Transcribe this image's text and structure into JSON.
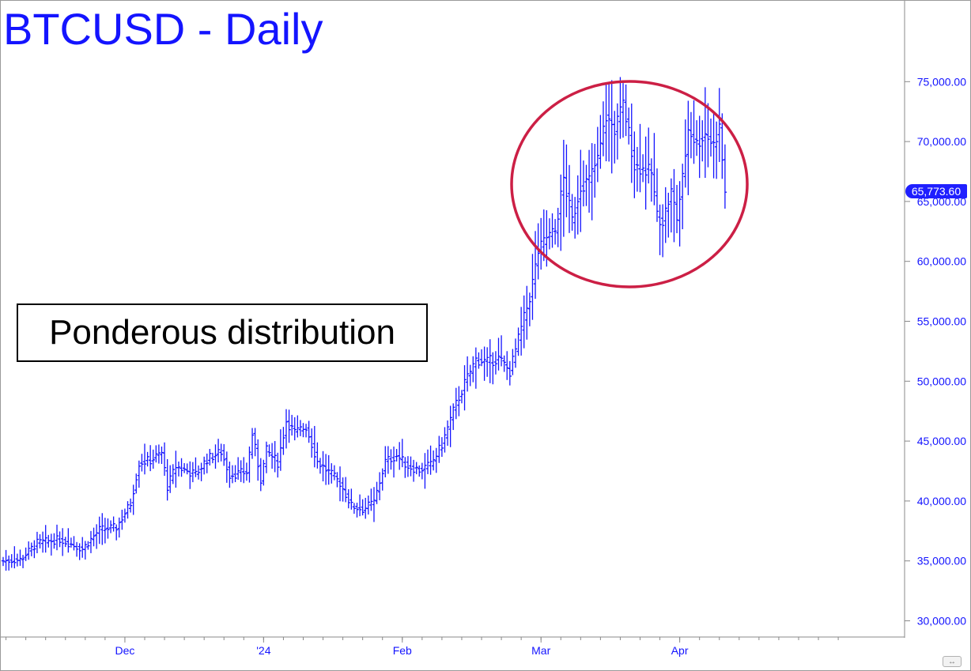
{
  "title": "BTCUSD - Daily",
  "annotation": "Ponderous distribution",
  "last_price_label": "65,773.60",
  "colors": {
    "bars": "#1414ff",
    "title": "#1414ff",
    "axis_text": "#1414ff",
    "circle": "#cc1f45",
    "badge_bg": "#1f1fff"
  },
  "chart_data": {
    "type": "ohlc",
    "title": "BTCUSD - Daily",
    "ylim": [
      28500,
      80000
    ],
    "y_ticks": [
      30000,
      35000,
      40000,
      45000,
      50000,
      55000,
      60000,
      65000,
      70000,
      75000
    ],
    "y_tick_labels": [
      "30,000.00",
      "35,000.00",
      "40,000.00",
      "45,000.00",
      "50,000.00",
      "55,000.00",
      "60,000.00",
      "65,000.00",
      "70,000.00",
      "75,000.00"
    ],
    "x_tick_labels": [
      {
        "label": "Dec",
        "index": 43
      },
      {
        "label": "'24",
        "index": 92
      },
      {
        "label": "Feb",
        "index": 141
      },
      {
        "label": "Mar",
        "index": 190
      },
      {
        "label": "Apr",
        "index": 239
      }
    ],
    "last_price": 65773.6,
    "grid": false,
    "keypoints": [
      {
        "i": 0,
        "c": 35000
      },
      {
        "i": 6,
        "c": 35100
      },
      {
        "i": 12,
        "c": 36500
      },
      {
        "i": 20,
        "c": 36800
      },
      {
        "i": 28,
        "c": 36000
      },
      {
        "i": 34,
        "c": 37600
      },
      {
        "i": 40,
        "c": 37800
      },
      {
        "i": 45,
        "c": 39800
      },
      {
        "i": 48,
        "c": 43200
      },
      {
        "i": 52,
        "c": 43400
      },
      {
        "i": 56,
        "c": 44000
      },
      {
        "i": 58,
        "c": 41200
      },
      {
        "i": 61,
        "c": 42900
      },
      {
        "i": 68,
        "c": 42200
      },
      {
        "i": 72,
        "c": 43500
      },
      {
        "i": 77,
        "c": 44100
      },
      {
        "i": 80,
        "c": 42200
      },
      {
        "i": 86,
        "c": 42400
      },
      {
        "i": 88,
        "c": 45600
      },
      {
        "i": 91,
        "c": 41800
      },
      {
        "i": 93,
        "c": 44200
      },
      {
        "i": 97,
        "c": 43200
      },
      {
        "i": 100,
        "c": 46700
      },
      {
        "i": 103,
        "c": 45700
      },
      {
        "i": 107,
        "c": 46200
      },
      {
        "i": 111,
        "c": 43300
      },
      {
        "i": 115,
        "c": 42400
      },
      {
        "i": 119,
        "c": 41500
      },
      {
        "i": 123,
        "c": 39600
      },
      {
        "i": 127,
        "c": 39300
      },
      {
        "i": 131,
        "c": 39900
      },
      {
        "i": 135,
        "c": 43300
      },
      {
        "i": 139,
        "c": 43800
      },
      {
        "i": 143,
        "c": 42900
      },
      {
        "i": 147,
        "c": 42600
      },
      {
        "i": 151,
        "c": 43000
      },
      {
        "i": 155,
        "c": 44700
      },
      {
        "i": 159,
        "c": 47500
      },
      {
        "i": 163,
        "c": 49800
      },
      {
        "i": 167,
        "c": 51800
      },
      {
        "i": 171,
        "c": 51600
      },
      {
        "i": 175,
        "c": 51900
      },
      {
        "i": 179,
        "c": 50800
      },
      {
        "i": 183,
        "c": 54400
      },
      {
        "i": 186,
        "c": 57000
      },
      {
        "i": 189,
        "c": 60800
      },
      {
        "i": 192,
        "c": 62000
      },
      {
        "i": 195,
        "c": 62500
      },
      {
        "i": 198,
        "c": 66900
      },
      {
        "i": 201,
        "c": 63400
      },
      {
        "i": 204,
        "c": 66300
      },
      {
        "i": 207,
        "c": 66800
      },
      {
        "i": 210,
        "c": 68500
      },
      {
        "i": 213,
        "c": 72100
      },
      {
        "i": 216,
        "c": 71000
      },
      {
        "i": 219,
        "c": 73100
      },
      {
        "i": 221,
        "c": 70700
      },
      {
        "i": 223,
        "c": 68000
      },
      {
        "i": 226,
        "c": 67700
      },
      {
        "i": 229,
        "c": 67400
      },
      {
        "i": 231,
        "c": 63800
      },
      {
        "i": 233,
        "c": 63400
      },
      {
        "i": 236,
        "c": 65800
      },
      {
        "i": 238,
        "c": 63600
      },
      {
        "i": 240,
        "c": 66900
      },
      {
        "i": 242,
        "c": 71100
      },
      {
        "i": 245,
        "c": 69800
      },
      {
        "i": 248,
        "c": 70700
      },
      {
        "i": 251,
        "c": 69700
      },
      {
        "i": 253,
        "c": 71200
      },
      {
        "i": 255,
        "c": 65774
      }
    ]
  },
  "ui": {
    "scroll_glyph": "↔"
  }
}
